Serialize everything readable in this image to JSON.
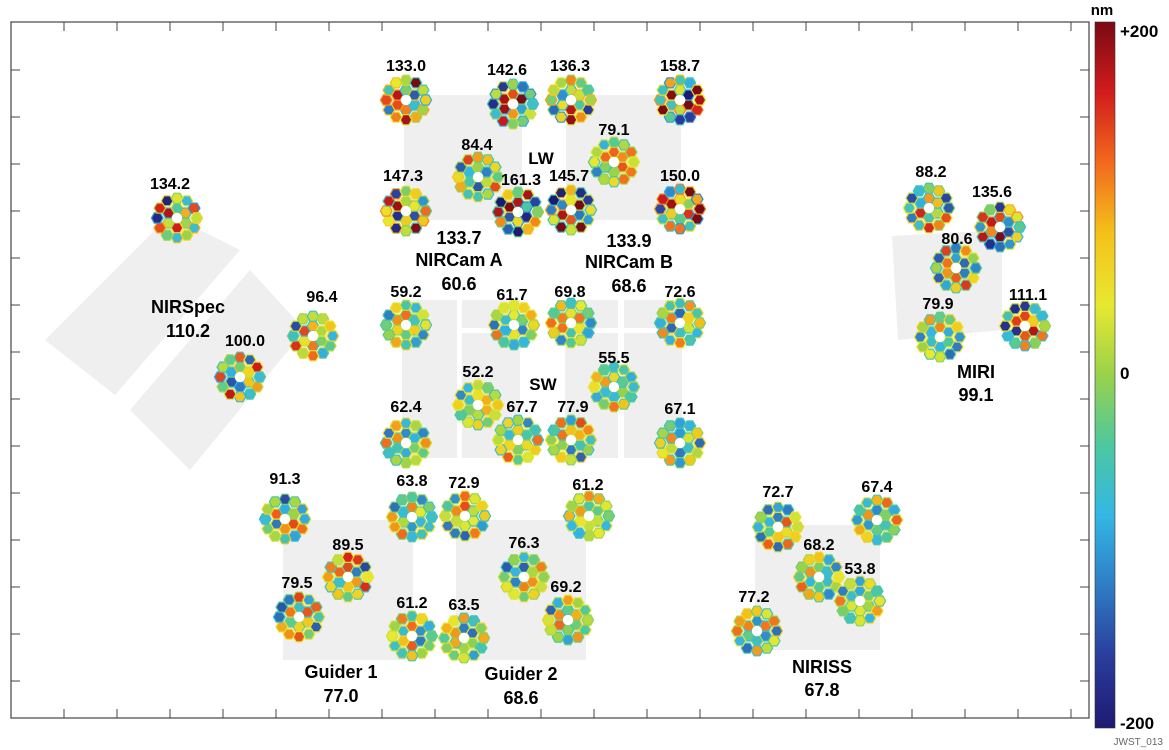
{
  "colorbar": {
    "unit_label": "nm",
    "top_label": "+200",
    "mid_label": "0",
    "bottom_label": "-200",
    "colors": [
      "#7a0a14",
      "#d21c1c",
      "#f26a1e",
      "#f4c21a",
      "#e8e830",
      "#9ad24a",
      "#4cc8a0",
      "#34b6e4",
      "#2e7cc4",
      "#2a3c9c",
      "#1e1a70"
    ]
  },
  "footer_code": "JWST_013",
  "instruments": [
    {
      "id": "nirspec",
      "name": "NIRSpec",
      "value": "110.2"
    },
    {
      "id": "nircam-a",
      "name": "NIRCam A",
      "value": "60.6",
      "lw_value": "133.7"
    },
    {
      "id": "nircam-b",
      "name": "NIRCam B",
      "value": "68.6",
      "lw_value": "133.9"
    },
    {
      "id": "miri",
      "name": "MIRI",
      "value": "99.1"
    },
    {
      "id": "guider-1",
      "name": "Guider 1",
      "value": "77.0"
    },
    {
      "id": "guider-2",
      "name": "Guider 2",
      "value": "68.6"
    },
    {
      "id": "niriss",
      "name": "NIRISS",
      "value": "67.8"
    }
  ],
  "channel_labels": {
    "lw": "LW",
    "sw": "SW"
  },
  "wavefront_maps": [
    {
      "value": "134.2",
      "level": 0.67,
      "group": "nirspec"
    },
    {
      "value": "96.4",
      "level": 0.48,
      "group": "nirspec"
    },
    {
      "value": "100.0",
      "level": 0.5,
      "group": "nirspec"
    },
    {
      "value": "133.0",
      "level": 0.66,
      "group": "nircam-a-lw"
    },
    {
      "value": "142.6",
      "level": 0.71,
      "group": "nircam-a-lw"
    },
    {
      "value": "84.4",
      "level": 0.42,
      "group": "nircam-a-lw"
    },
    {
      "value": "147.3",
      "level": 0.74,
      "group": "nircam-a-lw"
    },
    {
      "value": "161.3",
      "level": 0.81,
      "group": "nircam-a-lw"
    },
    {
      "value": "136.3",
      "level": 0.68,
      "group": "nircam-b-lw"
    },
    {
      "value": "158.7",
      "level": 0.79,
      "group": "nircam-b-lw"
    },
    {
      "value": "79.1",
      "level": 0.4,
      "group": "nircam-b-lw"
    },
    {
      "value": "145.7",
      "level": 0.73,
      "group": "nircam-b-lw"
    },
    {
      "value": "150.0",
      "level": 0.75,
      "group": "nircam-b-lw"
    },
    {
      "value": "59.2",
      "level": 0.3,
      "group": "nircam-sw"
    },
    {
      "value": "61.7",
      "level": 0.31,
      "group": "nircam-sw"
    },
    {
      "value": "69.8",
      "level": 0.35,
      "group": "nircam-sw"
    },
    {
      "value": "72.6",
      "level": 0.36,
      "group": "nircam-sw"
    },
    {
      "value": "52.2",
      "level": 0.26,
      "group": "nircam-sw"
    },
    {
      "value": "55.5",
      "level": 0.28,
      "group": "nircam-sw"
    },
    {
      "value": "62.4",
      "level": 0.31,
      "group": "nircam-sw"
    },
    {
      "value": "67.7",
      "level": 0.34,
      "group": "nircam-sw"
    },
    {
      "value": "77.9",
      "level": 0.39,
      "group": "nircam-sw"
    },
    {
      "value": "67.1",
      "level": 0.34,
      "group": "nircam-sw"
    },
    {
      "value": "88.2",
      "level": 0.44,
      "group": "miri"
    },
    {
      "value": "135.6",
      "level": 0.68,
      "group": "miri"
    },
    {
      "value": "80.6",
      "level": 0.4,
      "group": "miri"
    },
    {
      "value": "79.9",
      "level": 0.4,
      "group": "miri"
    },
    {
      "value": "111.1",
      "level": 0.56,
      "group": "miri"
    },
    {
      "value": "91.3",
      "level": 0.46,
      "group": "guider-1"
    },
    {
      "value": "63.8",
      "level": 0.32,
      "group": "guider-1"
    },
    {
      "value": "89.5",
      "level": 0.45,
      "group": "guider-1"
    },
    {
      "value": "79.5",
      "level": 0.4,
      "group": "guider-1"
    },
    {
      "value": "61.2",
      "level": 0.31,
      "group": "guider-1"
    },
    {
      "value": "72.9",
      "level": 0.36,
      "group": "guider-2"
    },
    {
      "value": "61.2",
      "level": 0.31,
      "group": "guider-2"
    },
    {
      "value": "76.3",
      "level": 0.38,
      "group": "guider-2"
    },
    {
      "value": "63.5",
      "level": 0.32,
      "group": "guider-2"
    },
    {
      "value": "69.2",
      "level": 0.35,
      "group": "guider-2"
    },
    {
      "value": "72.7",
      "level": 0.36,
      "group": "niriss"
    },
    {
      "value": "67.4",
      "level": 0.34,
      "group": "niriss"
    },
    {
      "value": "68.2",
      "level": 0.34,
      "group": "niriss"
    },
    {
      "value": "53.8",
      "level": 0.27,
      "group": "niriss"
    },
    {
      "value": "77.2",
      "level": 0.39,
      "group": "niriss"
    }
  ]
}
